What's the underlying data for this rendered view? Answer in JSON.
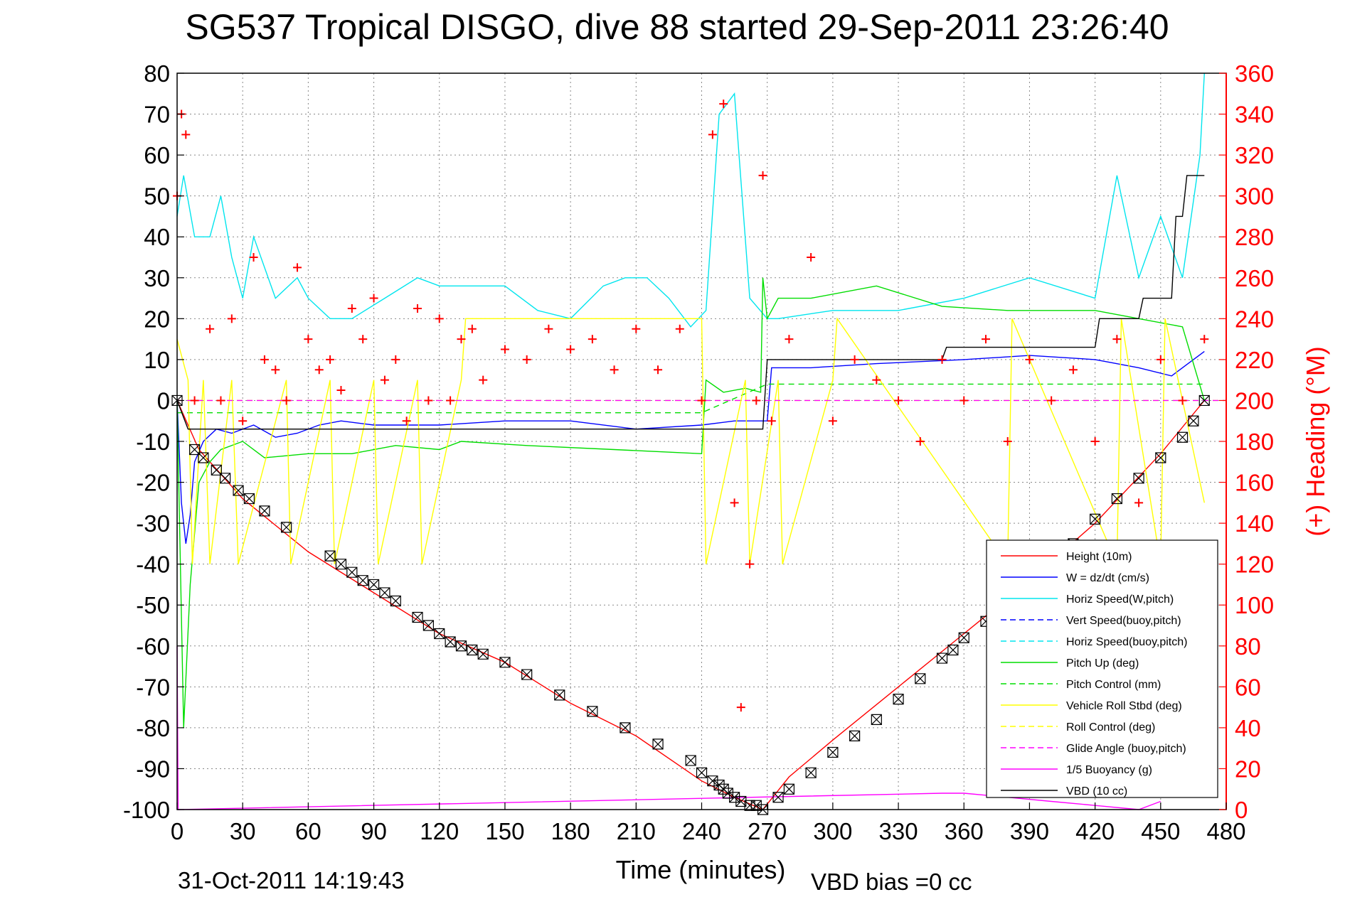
{
  "chart_data": {
    "type": "line",
    "title": "SG537 Tropical DISGO, dive 88 started 29-Sep-2011 23:26:40",
    "xlabel": "Time (minutes)",
    "ylabel": "",
    "ylabel_right": "(+) Heading (°M)",
    "xlim": [
      0,
      480
    ],
    "ylim": [
      -100,
      80
    ],
    "ylim_right": [
      0,
      360
    ],
    "xticks": [
      0,
      30,
      60,
      90,
      120,
      150,
      180,
      210,
      240,
      270,
      300,
      330,
      360,
      390,
      420,
      450,
      480
    ],
    "yticks": [
      -100,
      -90,
      -80,
      -70,
      -60,
      -50,
      -40,
      -30,
      -20,
      -10,
      0,
      10,
      20,
      30,
      40,
      50,
      60,
      70,
      80
    ],
    "yticks_right": [
      0,
      20,
      40,
      60,
      80,
      100,
      120,
      140,
      160,
      180,
      200,
      220,
      240,
      260,
      280,
      300,
      320,
      340,
      360
    ],
    "grid": true,
    "legend_position": "lower-right",
    "footer_date": "31-Oct-2011 14:19:43",
    "footer_note": "VBD bias =0 cc",
    "series": [
      {
        "name": "Height (10m)",
        "color": "#ff0000",
        "style": "solid",
        "x": [
          0,
          10,
          30,
          60,
          90,
          120,
          150,
          180,
          210,
          240,
          255,
          268,
          280,
          300,
          330,
          360,
          390,
          420,
          450,
          470
        ],
        "y": [
          0,
          -12,
          -24,
          -37,
          -47,
          -57,
          -64,
          -74,
          -82,
          -93,
          -97,
          -100,
          -92,
          -83,
          -70,
          -57,
          -44,
          -30,
          -13,
          0
        ]
      },
      {
        "name": "W = dz/dt (cm/s)",
        "color": "#0000ff",
        "style": "solid",
        "x": [
          0,
          2,
          4,
          6,
          8,
          12,
          18,
          25,
          35,
          45,
          55,
          65,
          75,
          90,
          120,
          150,
          180,
          210,
          240,
          255,
          265,
          270,
          272,
          290,
          320,
          360,
          390,
          420,
          440,
          455,
          465,
          470
        ],
        "y": [
          0,
          -25,
          -35,
          -28,
          -15,
          -10,
          -7,
          -8,
          -6,
          -9,
          -8,
          -6,
          -5,
          -6,
          -6,
          -5,
          -5,
          -7,
          -6,
          -5,
          -5,
          -5,
          8,
          8,
          9,
          10,
          11,
          10,
          8,
          6,
          10,
          12
        ]
      },
      {
        "name": "Horiz Speed(W,pitch)",
        "color": "#00e5ee",
        "style": "solid",
        "x": [
          0,
          3,
          8,
          15,
          20,
          25,
          30,
          35,
          45,
          55,
          60,
          70,
          80,
          95,
          110,
          120,
          135,
          150,
          165,
          180,
          195,
          205,
          215,
          225,
          235,
          242,
          248,
          255,
          262,
          270,
          275,
          300,
          330,
          360,
          390,
          420,
          425,
          430,
          440,
          450,
          460,
          468,
          470
        ],
        "y": [
          45,
          55,
          40,
          40,
          50,
          35,
          25,
          40,
          25,
          30,
          25,
          20,
          20,
          25,
          30,
          28,
          28,
          28,
          22,
          20,
          28,
          30,
          30,
          25,
          18,
          22,
          70,
          75,
          25,
          20,
          20,
          22,
          22,
          25,
          30,
          25,
          40,
          55,
          30,
          45,
          30,
          60,
          80
        ]
      },
      {
        "name": "Vert Speed(buoy,pitch)",
        "color": "#0000ff",
        "style": "dashed",
        "x": [],
        "y": []
      },
      {
        "name": "Horiz Speed(buoy,pitch)",
        "color": "#00e5ee",
        "style": "dashed",
        "x": [],
        "y": []
      },
      {
        "name": "Pitch Up (deg)",
        "color": "#00dd00",
        "style": "solid",
        "x": [
          0,
          3,
          6,
          10,
          15,
          20,
          30,
          40,
          60,
          80,
          100,
          120,
          130,
          160,
          200,
          240,
          242,
          250,
          260,
          267,
          268,
          270,
          275,
          290,
          320,
          350,
          380,
          420,
          440,
          460,
          470
        ],
        "y": [
          0,
          -80,
          -45,
          -20,
          -15,
          -12,
          -10,
          -14,
          -13,
          -13,
          -11,
          -12,
          -10,
          -11,
          -12,
          -13,
          5,
          2,
          3,
          2,
          30,
          20,
          25,
          25,
          28,
          23,
          22,
          22,
          20,
          18,
          0
        ]
      },
      {
        "name": "Pitch Control (mm)",
        "color": "#00dd00",
        "style": "dashed",
        "x": [
          0,
          60,
          120,
          180,
          240,
          270,
          330,
          390,
          450,
          470
        ],
        "y": [
          -3,
          -3,
          -3,
          -3,
          -3,
          4,
          4,
          4,
          4,
          4
        ]
      },
      {
        "name": "Vehicle Roll Stbd (deg)",
        "color": "#ffff00",
        "style": "solid",
        "x": [
          0,
          5,
          7,
          12,
          15,
          25,
          28,
          50,
          52,
          70,
          72,
          90,
          92,
          110,
          112,
          130,
          132,
          200,
          240,
          242,
          260,
          262,
          275,
          277,
          300,
          302,
          380,
          382,
          430,
          432,
          450,
          452,
          470
        ],
        "y": [
          15,
          5,
          -40,
          5,
          -40,
          5,
          -40,
          5,
          -40,
          5,
          -40,
          5,
          -40,
          5,
          -40,
          5,
          20,
          20,
          20,
          -40,
          5,
          -40,
          5,
          -40,
          5,
          20,
          -40,
          20,
          -40,
          20,
          -40,
          20,
          -25
        ]
      },
      {
        "name": "Roll Control (deg)",
        "color": "#ffff00",
        "style": "dashed",
        "x": [
          0,
          480
        ],
        "y": [
          0,
          0
        ]
      },
      {
        "name": "Glide Angle (buoy,pitch)",
        "color": "#ff00ff",
        "style": "dashed",
        "x": [
          0,
          480
        ],
        "y": [
          0,
          0
        ]
      },
      {
        "name": "1/5 Buoyancy (g)",
        "color": "#ff00ff",
        "style": "solid",
        "x": [
          0,
          0.5,
          350,
          360,
          380,
          400,
          420,
          440,
          450
        ],
        "y": [
          -60,
          -100,
          -96,
          -96,
          -97,
          -98,
          -99,
          -100,
          -98
        ]
      },
      {
        "name": "VBD (10 cc)",
        "color": "#000000",
        "style": "solid",
        "x": [
          0,
          5,
          30,
          60,
          90,
          120,
          150,
          180,
          210,
          240,
          268,
          270,
          300,
          330,
          350,
          352,
          420,
          422,
          440,
          442,
          455,
          457,
          460,
          462,
          470
        ],
        "y": [
          0,
          -7,
          -7,
          -7,
          -7,
          -7,
          -7,
          -7,
          -7,
          -7,
          -7,
          10,
          10,
          10,
          10,
          13,
          13,
          20,
          20,
          25,
          25,
          45,
          45,
          55,
          55
        ]
      },
      {
        "name": "Heading",
        "color": "#ff0000",
        "style": "markers-plus",
        "axis": "right",
        "x": [
          0,
          2,
          4,
          8,
          15,
          20,
          25,
          30,
          35,
          40,
          45,
          50,
          55,
          60,
          65,
          70,
          75,
          80,
          85,
          90,
          95,
          100,
          105,
          110,
          115,
          120,
          125,
          130,
          135,
          140,
          150,
          160,
          170,
          180,
          190,
          200,
          210,
          220,
          230,
          240,
          245,
          250,
          255,
          258,
          262,
          265,
          268,
          272,
          280,
          290,
          300,
          310,
          320,
          330,
          340,
          350,
          360,
          370,
          380,
          390,
          400,
          410,
          420,
          430,
          440,
          450,
          460,
          470
        ],
        "y": [
          300,
          340,
          330,
          200,
          235,
          200,
          240,
          190,
          270,
          220,
          215,
          200,
          265,
          230,
          215,
          220,
          205,
          245,
          230,
          250,
          210,
          220,
          190,
          245,
          200,
          240,
          200,
          230,
          235,
          210,
          225,
          220,
          235,
          225,
          230,
          215,
          235,
          215,
          235,
          200,
          330,
          345,
          150,
          50,
          120,
          200,
          310,
          190,
          230,
          270,
          190,
          220,
          210,
          200,
          180,
          220,
          200,
          230,
          180,
          220,
          200,
          215,
          180,
          230,
          150,
          220,
          200,
          230
        ]
      },
      {
        "name": "Height markers",
        "color": "#000000",
        "style": "markers-box",
        "x": [
          0,
          8,
          12,
          18,
          22,
          28,
          33,
          40,
          50,
          70,
          75,
          80,
          85,
          90,
          95,
          100,
          110,
          115,
          120,
          125,
          130,
          135,
          140,
          150,
          160,
          175,
          190,
          205,
          220,
          235,
          240,
          245,
          248,
          250,
          252,
          255,
          258,
          262,
          265,
          268,
          275,
          280,
          290,
          300,
          310,
          320,
          330,
          340,
          350,
          355,
          360,
          370,
          380,
          390,
          400,
          410,
          420,
          430,
          440,
          450,
          460,
          465,
          470
        ],
        "y": [
          0,
          -12,
          -14,
          -17,
          -19,
          -22,
          -24,
          -27,
          -31,
          -38,
          -40,
          -42,
          -44,
          -45,
          -47,
          -49,
          -53,
          -55,
          -57,
          -59,
          -60,
          -61,
          -62,
          -64,
          -67,
          -72,
          -76,
          -80,
          -84,
          -88,
          -91,
          -93,
          -94,
          -95,
          -96,
          -97,
          -98,
          -99,
          -99,
          -100,
          -97,
          -95,
          -91,
          -86,
          -82,
          -78,
          -73,
          -68,
          -63,
          -61,
          -58,
          -54,
          -49,
          -44,
          -39,
          -35,
          -29,
          -24,
          -19,
          -14,
          -9,
          -5,
          0
        ]
      }
    ]
  }
}
